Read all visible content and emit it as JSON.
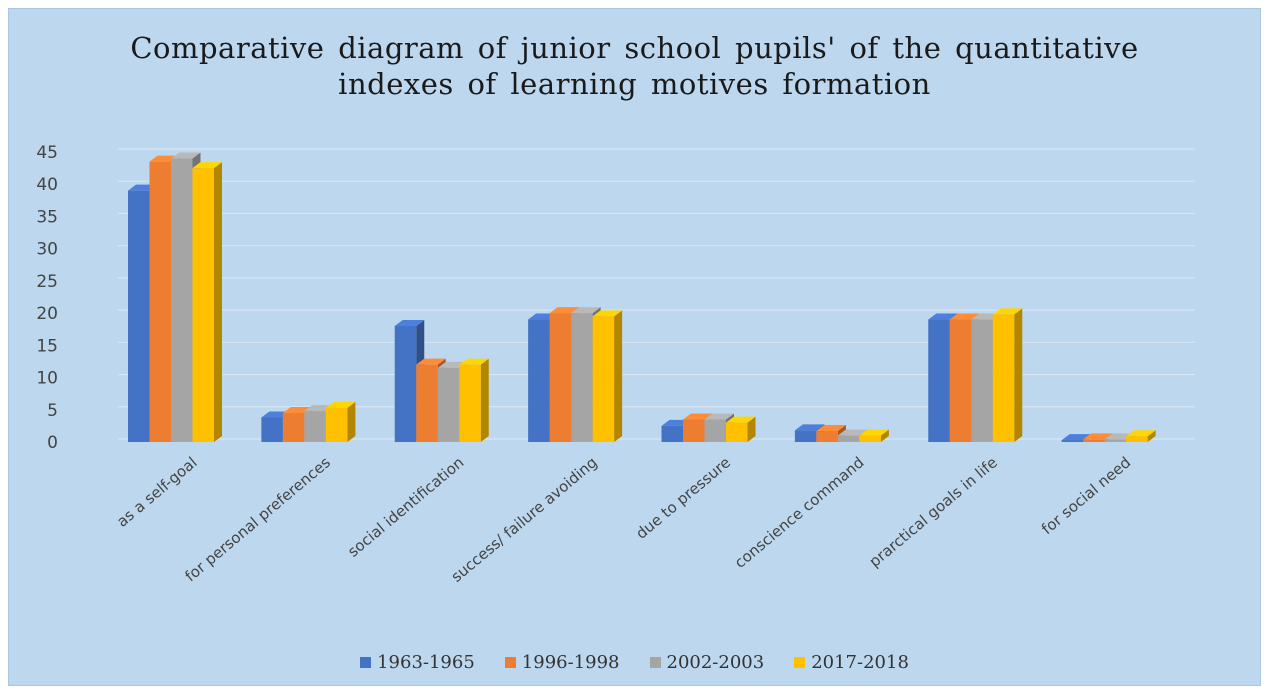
{
  "chart_data": {
    "type": "bar",
    "title_lines": [
      "Comparative diagram of junior school pupils' of the quantitative",
      "indexes of learning motives formation"
    ],
    "categories": [
      "as a self-goal",
      "for personal preferences",
      "social identification",
      "success/ failure avoiding",
      "due to pressure",
      "conscience command",
      "prarctical goals in life",
      "for social need"
    ],
    "series": [
      {
        "name": "1963-1965",
        "color": "#4472c4",
        "values": [
          39,
          3.8,
          18,
          19,
          2.5,
          1.8,
          19,
          0.3
        ]
      },
      {
        "name": "1996-1998",
        "color": "#ed7d31",
        "values": [
          43.5,
          4.5,
          12,
          20,
          3.5,
          1.7,
          19,
          0.4
        ]
      },
      {
        "name": "2002-2003",
        "color": "#a5a5a5",
        "values": [
          44,
          4.8,
          11.5,
          20,
          3.5,
          1,
          19,
          0.4
        ]
      },
      {
        "name": "2017-2018",
        "color": "#ffc000",
        "values": [
          42.5,
          5.3,
          12,
          19.5,
          3,
          1,
          19.8,
          0.9
        ]
      }
    ],
    "y_ticks": [
      0,
      5,
      10,
      15,
      20,
      25,
      30,
      35,
      40,
      45
    ],
    "ylim": [
      0,
      45
    ],
    "grid": true,
    "legend_position": "bottom"
  }
}
